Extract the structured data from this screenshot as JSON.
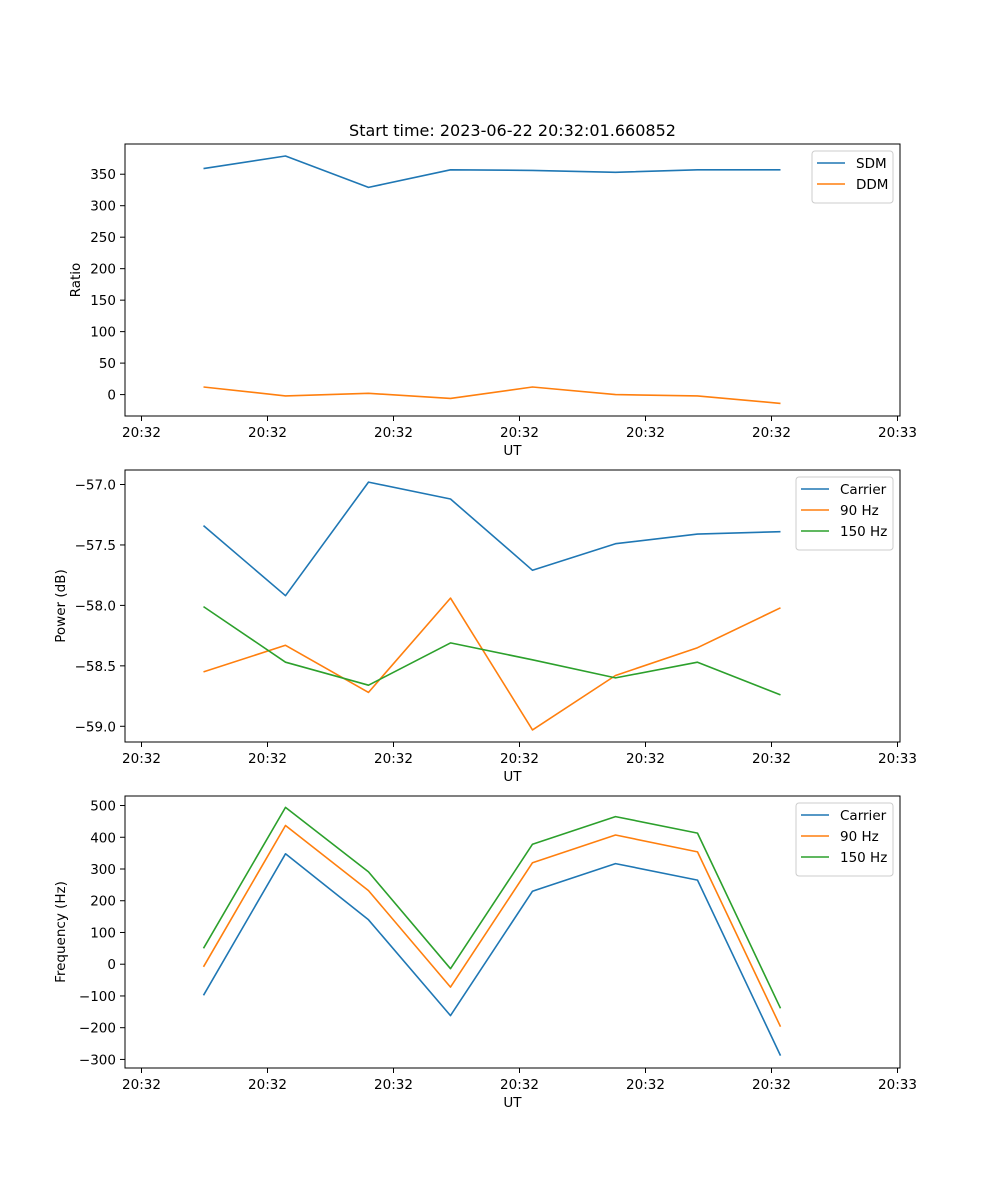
{
  "figure": {
    "title": "Start time: 2023-06-22 20:32:01.660852"
  },
  "chart_data": [
    {
      "type": "line",
      "xlabel": "UT",
      "ylabel": "Ratio",
      "x_tick_labels": [
        "20:32",
        "20:32",
        "20:32",
        "20:32",
        "20:32",
        "20:32",
        "20:32",
        "20:33"
      ],
      "y_ticks": [
        0,
        50,
        100,
        150,
        200,
        250,
        300,
        350
      ],
      "y_tick_labels": [
        "0",
        "50",
        "100",
        "150",
        "200",
        "250",
        "300",
        "350"
      ],
      "ylim": [
        -34,
        398
      ],
      "legend_position": "top-right",
      "series": [
        {
          "name": "SDM",
          "color": "#1f77b4",
          "values": [
            359,
            379,
            329,
            357,
            356,
            353,
            357,
            357
          ]
        },
        {
          "name": "DDM",
          "color": "#ff7f0e",
          "values": [
            12,
            -2,
            2,
            -6,
            12,
            0,
            -2,
            -14
          ]
        }
      ]
    },
    {
      "type": "line",
      "xlabel": "UT",
      "ylabel": "Power (dB)",
      "x_tick_labels": [
        "20:32",
        "20:32",
        "20:32",
        "20:32",
        "20:32",
        "20:32",
        "20:32",
        "20:33"
      ],
      "y_ticks": [
        -57.0,
        -57.5,
        -58.0,
        -58.5,
        -59.0
      ],
      "y_tick_labels": [
        "−57.0",
        "−57.5",
        "−58.0",
        "−58.5",
        "−59.0"
      ],
      "ylim": [
        -59.13,
        -56.88
      ],
      "legend_position": "top-right",
      "series": [
        {
          "name": "Carrier",
          "color": "#1f77b4",
          "values": [
            -57.34,
            -57.92,
            -56.98,
            -57.12,
            -57.71,
            -57.49,
            -57.41,
            -57.39
          ]
        },
        {
          "name": "90 Hz",
          "color": "#ff7f0e",
          "values": [
            -58.55,
            -58.33,
            -58.72,
            -57.94,
            -59.03,
            -58.58,
            -58.35,
            -58.02
          ]
        },
        {
          "name": "150 Hz",
          "color": "#2ca02c",
          "values": [
            -58.01,
            -58.47,
            -58.66,
            -58.31,
            -58.45,
            -58.6,
            -58.47,
            -58.74
          ]
        }
      ]
    },
    {
      "type": "line",
      "xlabel": "UT",
      "ylabel": "Frequency (Hz)",
      "x_tick_labels": [
        "20:32",
        "20:32",
        "20:32",
        "20:32",
        "20:32",
        "20:32",
        "20:32",
        "20:33"
      ],
      "y_ticks": [
        500,
        400,
        300,
        200,
        100,
        0,
        -100,
        -200,
        -300
      ],
      "y_tick_labels": [
        "500",
        "400",
        "300",
        "200",
        "100",
        "0",
        "−100",
        "−200",
        "−300"
      ],
      "ylim": [
        -327,
        530
      ],
      "legend_position": "top-right",
      "series": [
        {
          "name": "Carrier",
          "color": "#1f77b4",
          "values": [
            -98,
            348,
            140,
            -162,
            230,
            317,
            265,
            -288
          ]
        },
        {
          "name": "90 Hz",
          "color": "#ff7f0e",
          "values": [
            -8,
            437,
            232,
            -72,
            320,
            407,
            354,
            -197
          ]
        },
        {
          "name": "150 Hz",
          "color": "#2ca02c",
          "values": [
            50,
            494,
            291,
            -14,
            378,
            465,
            413,
            -139
          ]
        }
      ]
    }
  ]
}
